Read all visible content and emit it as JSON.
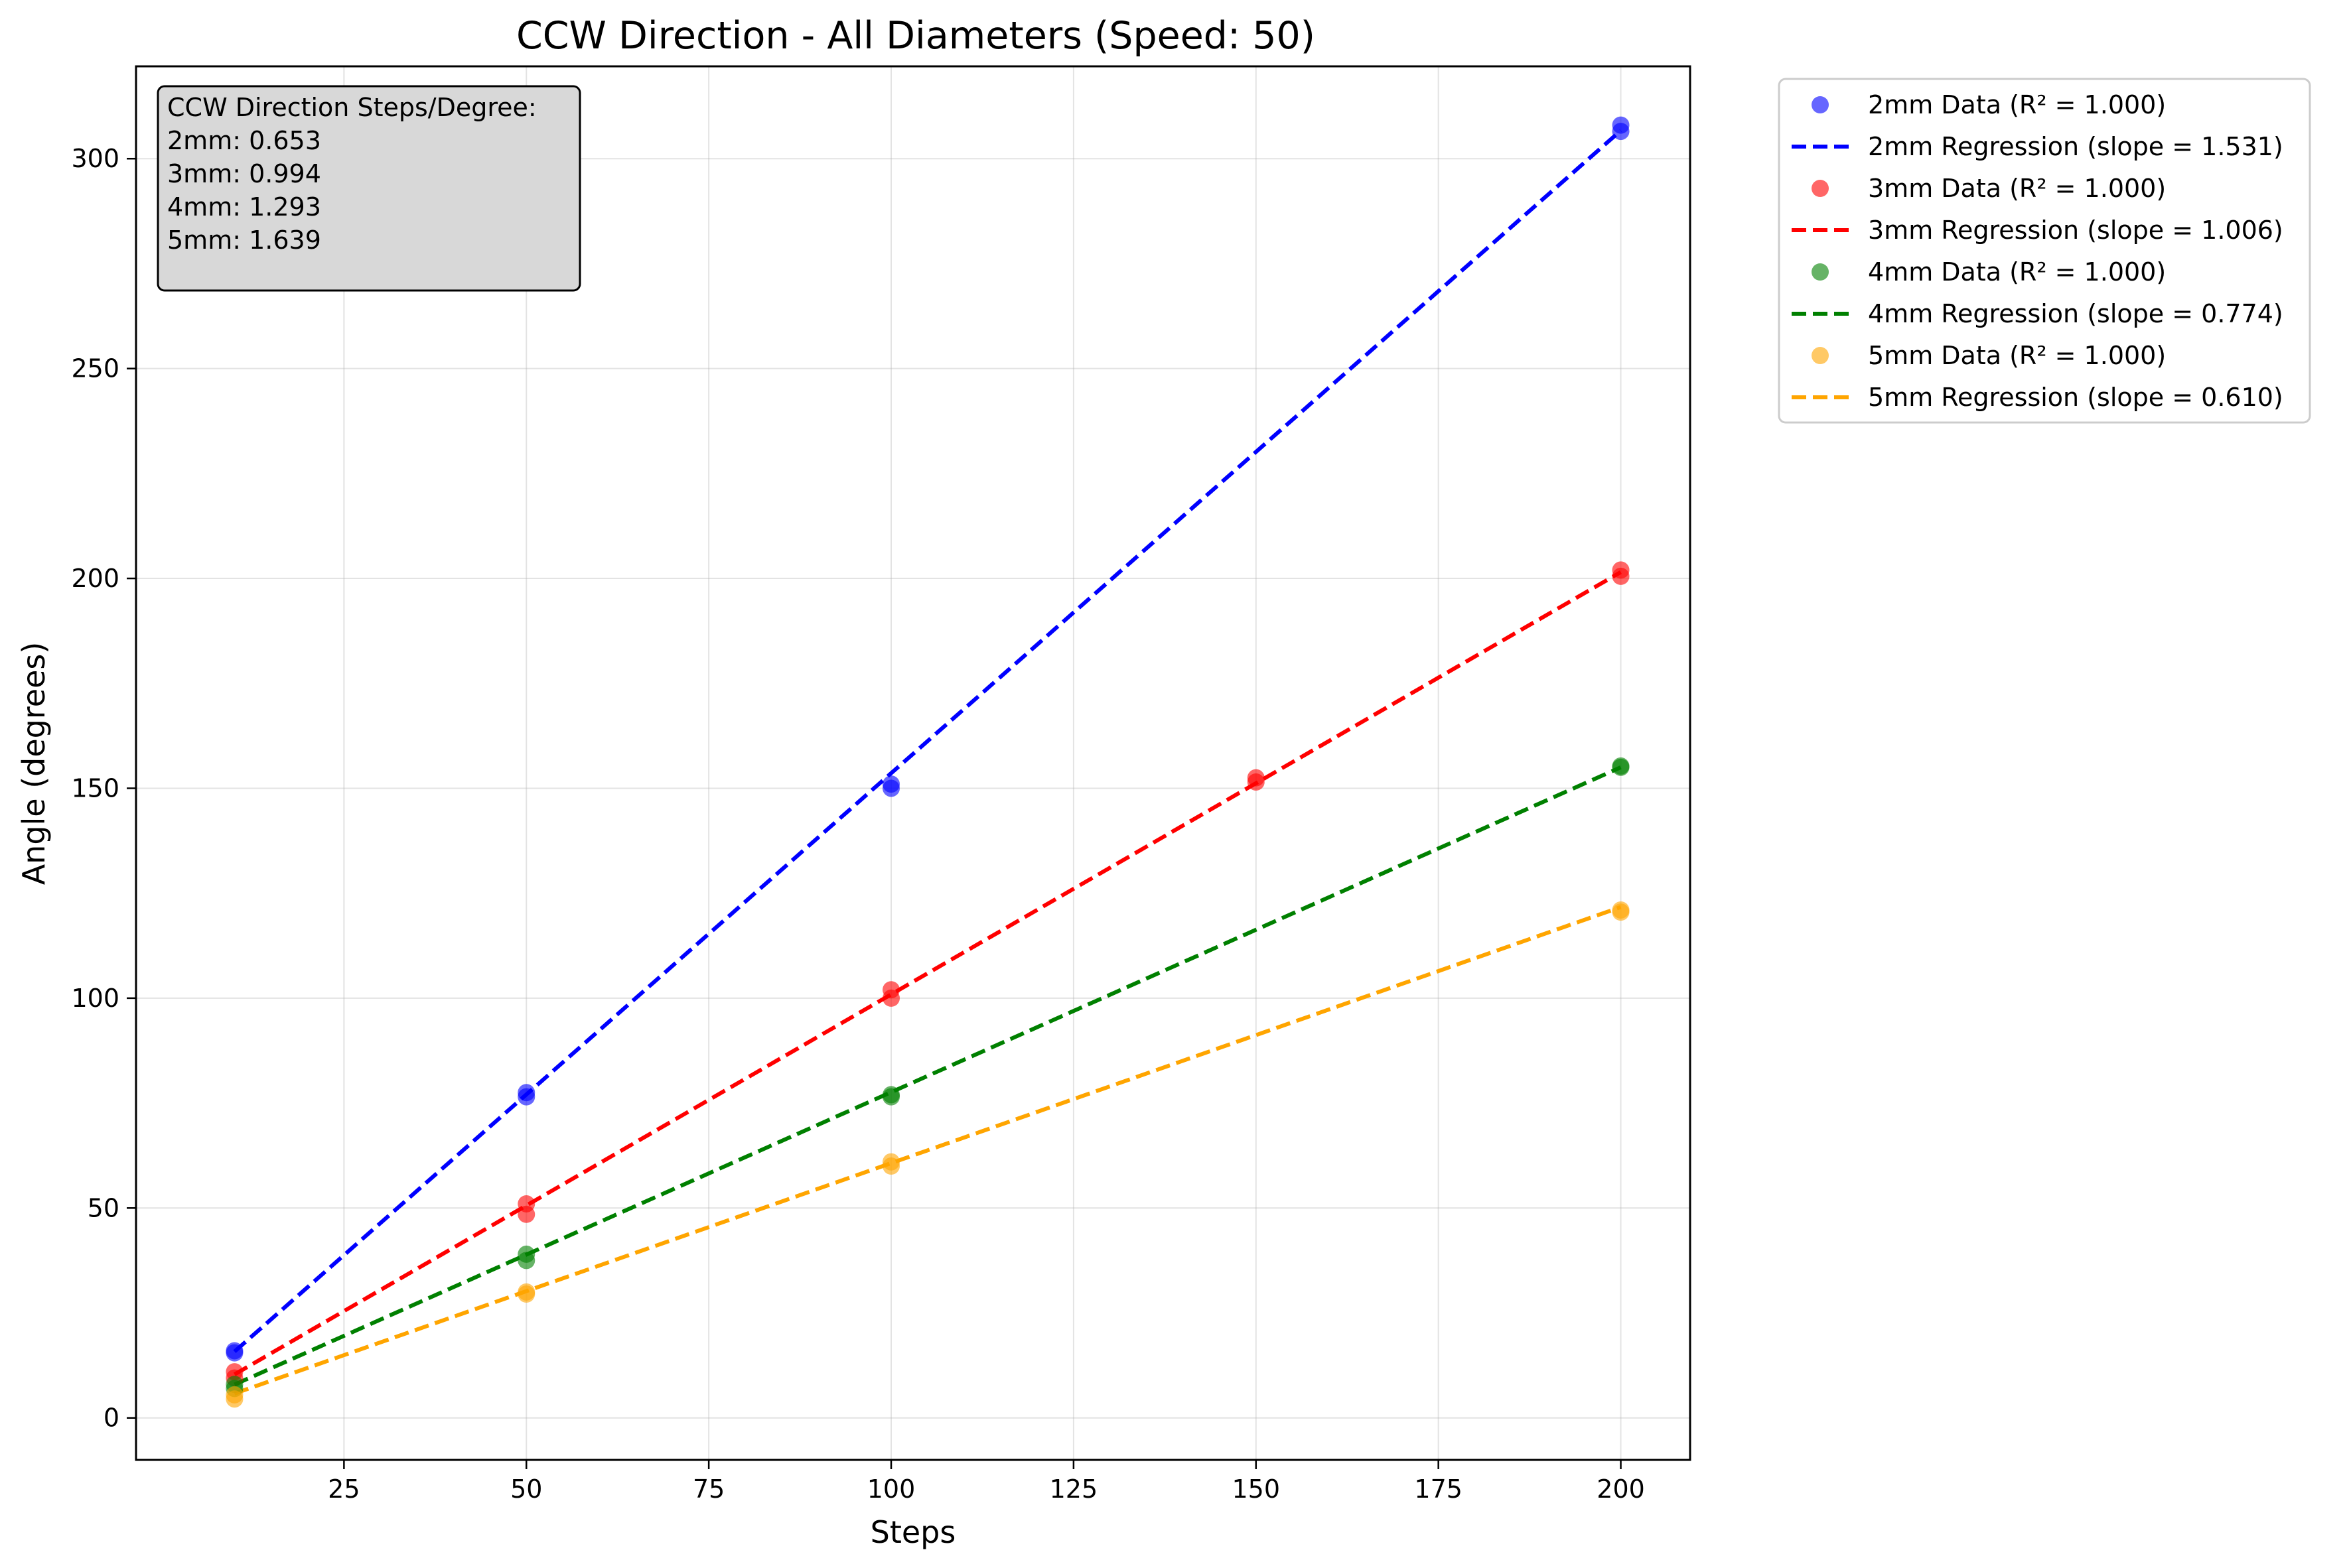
{
  "chart_data": {
    "type": "scatter",
    "title": "CCW Direction - All Diameters (Speed: 50)",
    "xlabel": "Steps",
    "ylabel": "Angle (degrees)",
    "xlim": [
      -3.5,
      209.5
    ],
    "ylim": [
      -10,
      322
    ],
    "x_ticks": [
      "25",
      "50",
      "75",
      "100",
      "125",
      "150",
      "175",
      "200"
    ],
    "y_ticks": [
      "0",
      "50",
      "100",
      "150",
      "200",
      "250",
      "300"
    ],
    "grid": true,
    "legend_position": "outside top-right",
    "annotation": {
      "lines": [
        "CCW Direction Steps/Degree:",
        "2mm: 0.653",
        "3mm: 0.994",
        "4mm: 1.293",
        "5mm: 1.639"
      ]
    },
    "series": [
      {
        "name": "2mm",
        "color": "#0000ff",
        "data_label": "2mm Data (R² = 1.000)",
        "regression_label": "2mm Regression (slope = 1.531)",
        "slope": 1.531,
        "intercept": 0.5,
        "points": [
          [
            10,
            16
          ],
          [
            10,
            15.5
          ],
          [
            50,
            77.5
          ],
          [
            50,
            76.5
          ],
          [
            100,
            151
          ],
          [
            100,
            150
          ],
          [
            200,
            308
          ],
          [
            200,
            306.5
          ]
        ]
      },
      {
        "name": "3mm",
        "color": "#ff0000",
        "data_label": "3mm Data (R² = 1.000)",
        "regression_label": "3mm Regression (slope = 1.006)",
        "slope": 1.006,
        "intercept": 0.3,
        "points": [
          [
            10,
            11
          ],
          [
            10,
            9.5
          ],
          [
            50,
            51
          ],
          [
            50,
            48.5
          ],
          [
            100,
            102
          ],
          [
            100,
            100
          ],
          [
            150,
            152.5
          ],
          [
            150,
            151.5
          ],
          [
            200,
            202
          ],
          [
            200,
            200.5
          ]
        ]
      },
      {
        "name": "4mm",
        "color": "#008000",
        "data_label": "4mm Data (R² = 1.000)",
        "regression_label": "4mm Regression (slope = 0.774)",
        "slope": 0.774,
        "intercept": 0.2,
        "points": [
          [
            10,
            8
          ],
          [
            10,
            7
          ],
          [
            50,
            39
          ],
          [
            50,
            37.5
          ],
          [
            100,
            77
          ],
          [
            100,
            76.5
          ],
          [
            200,
            155
          ],
          [
            200,
            155.3
          ]
        ]
      },
      {
        "name": "5mm",
        "color": "#ffa500",
        "data_label": "5mm Data (R² = 1.000)",
        "regression_label": "5mm Regression (slope = 0.610)",
        "slope": 0.61,
        "intercept": -0.3,
        "points": [
          [
            10,
            5.5
          ],
          [
            10,
            4.5
          ],
          [
            50,
            30
          ],
          [
            50,
            29.5
          ],
          [
            100,
            61
          ],
          [
            100,
            60
          ],
          [
            200,
            121
          ],
          [
            200,
            120.5
          ]
        ]
      }
    ]
  }
}
